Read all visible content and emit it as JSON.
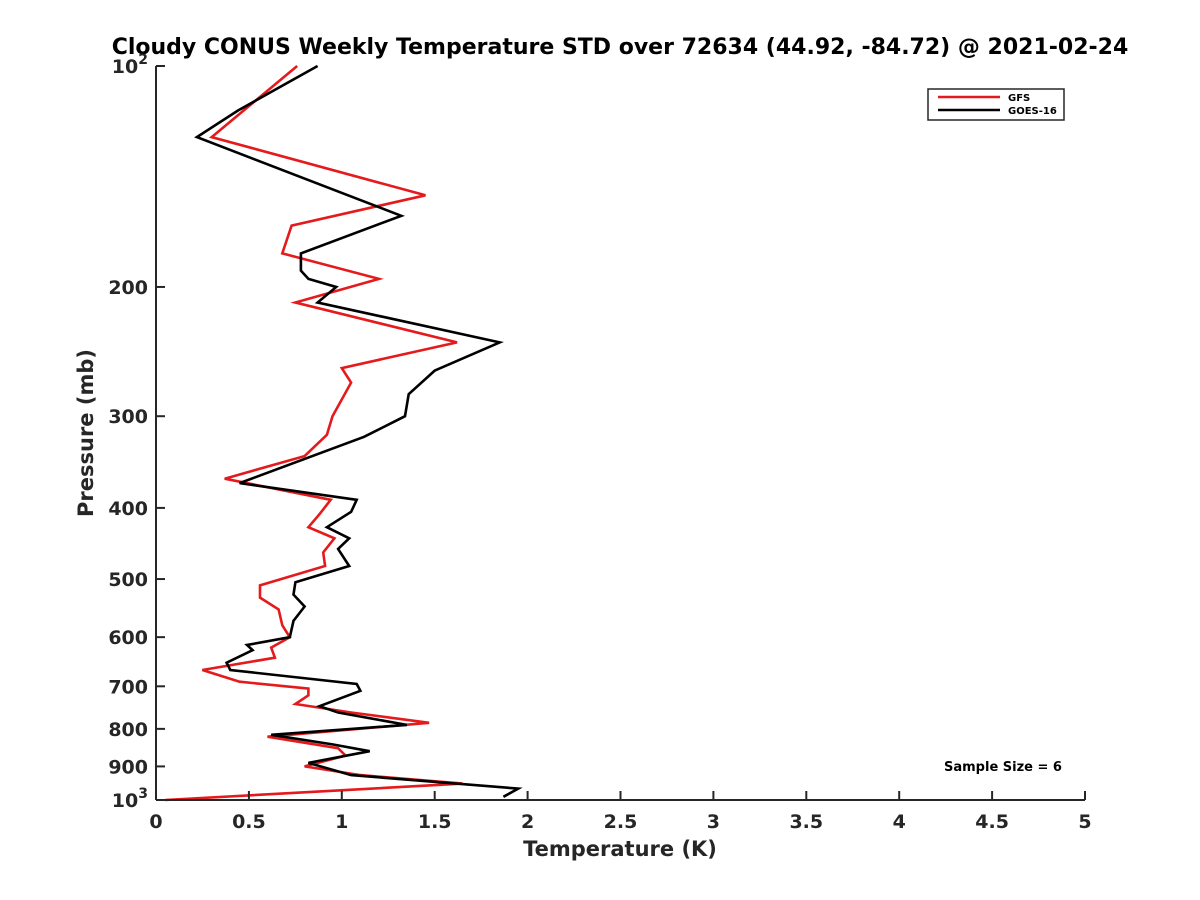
{
  "chart_data": {
    "type": "line",
    "title": "Cloudy CONUS Weekly Temperature STD over 72634 (44.92, -84.72) @ 2021-02-24",
    "xlabel": "Temperature (K)",
    "ylabel": "Pressure (mb)",
    "xlim": [
      0,
      5
    ],
    "ylim": [
      100,
      1000
    ],
    "y_scale": "log",
    "y_reversed": true,
    "x_ticks": [
      "0",
      "0.5",
      "1",
      "1.5",
      "2",
      "2.5",
      "3",
      "3.5",
      "4",
      "4.5",
      "5"
    ],
    "y_ticks": [
      {
        "value": 100,
        "base": "10",
        "exp": "2"
      },
      {
        "value": 200,
        "label": "200"
      },
      {
        "value": 300,
        "label": "300"
      },
      {
        "value": 400,
        "label": "400"
      },
      {
        "value": 500,
        "label": "500"
      },
      {
        "value": 600,
        "label": "600"
      },
      {
        "value": 700,
        "label": "700"
      },
      {
        "value": 800,
        "label": "800"
      },
      {
        "value": 900,
        "label": "900"
      },
      {
        "value": 1000,
        "base": "10",
        "exp": "3"
      }
    ],
    "grid": false,
    "legend_position": "top-right",
    "annotation": "Sample Size = 6",
    "series": [
      {
        "name": "GFS",
        "color": "#e41a1c",
        "points": [
          [
            0.76,
            100
          ],
          [
            0.3,
            125
          ],
          [
            1.45,
            150
          ],
          [
            0.73,
            165
          ],
          [
            0.68,
            180
          ],
          [
            1.2,
            195
          ],
          [
            0.75,
            210
          ],
          [
            1.62,
            238
          ],
          [
            1.0,
            258
          ],
          [
            1.05,
            270
          ],
          [
            0.95,
            300
          ],
          [
            0.92,
            318
          ],
          [
            0.8,
            340
          ],
          [
            0.37,
            365
          ],
          [
            0.94,
            390
          ],
          [
            0.88,
            408
          ],
          [
            0.82,
            425
          ],
          [
            0.96,
            440
          ],
          [
            0.9,
            460
          ],
          [
            0.91,
            480
          ],
          [
            0.56,
            510
          ],
          [
            0.56,
            530
          ],
          [
            0.66,
            550
          ],
          [
            0.68,
            578
          ],
          [
            0.72,
            600
          ],
          [
            0.62,
            620
          ],
          [
            0.64,
            640
          ],
          [
            0.25,
            665
          ],
          [
            0.45,
            690
          ],
          [
            0.82,
            705
          ],
          [
            0.82,
            720
          ],
          [
            0.75,
            740
          ],
          [
            1.05,
            760
          ],
          [
            1.47,
            785
          ],
          [
            0.6,
            820
          ],
          [
            0.98,
            850
          ],
          [
            1.02,
            870
          ],
          [
            0.8,
            900
          ],
          [
            1.1,
            925
          ],
          [
            1.65,
            950
          ],
          [
            0.05,
            1000
          ]
        ]
      },
      {
        "name": "GOES-16",
        "color": "#000000",
        "points": [
          [
            0.87,
            100
          ],
          [
            0.44,
            115
          ],
          [
            0.22,
            125
          ],
          [
            1.32,
            160
          ],
          [
            0.78,
            180
          ],
          [
            0.78,
            190
          ],
          [
            0.82,
            195
          ],
          [
            0.97,
            200
          ],
          [
            0.87,
            210
          ],
          [
            1.85,
            238
          ],
          [
            1.5,
            260
          ],
          [
            1.36,
            280
          ],
          [
            1.34,
            300
          ],
          [
            1.12,
            320
          ],
          [
            0.45,
            370
          ],
          [
            1.08,
            390
          ],
          [
            1.05,
            405
          ],
          [
            0.92,
            425
          ],
          [
            1.04,
            440
          ],
          [
            0.98,
            455
          ],
          [
            1.04,
            480
          ],
          [
            0.75,
            505
          ],
          [
            0.74,
            525
          ],
          [
            0.8,
            545
          ],
          [
            0.74,
            570
          ],
          [
            0.72,
            600
          ],
          [
            0.49,
            615
          ],
          [
            0.52,
            625
          ],
          [
            0.38,
            650
          ],
          [
            0.4,
            665
          ],
          [
            1.08,
            695
          ],
          [
            1.1,
            710
          ],
          [
            0.88,
            745
          ],
          [
            0.98,
            760
          ],
          [
            1.35,
            790
          ],
          [
            0.62,
            815
          ],
          [
            0.95,
            840
          ],
          [
            1.15,
            858
          ],
          [
            0.82,
            890
          ],
          [
            1.05,
            925
          ],
          [
            1.95,
            965
          ],
          [
            1.87,
            990
          ]
        ]
      }
    ]
  }
}
